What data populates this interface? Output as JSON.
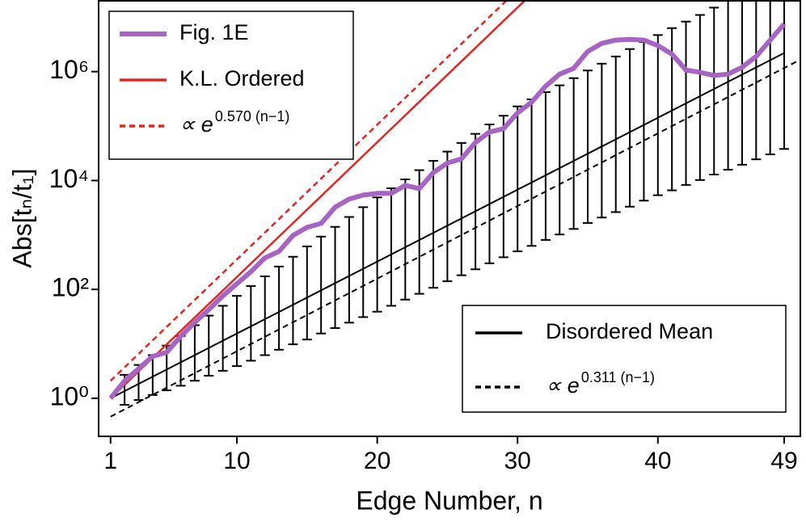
{
  "chart_data": {
    "type": "line",
    "xlabel": "Edge Number, n",
    "ylabel": "Abs[tₙ/t₁]",
    "log_y": true,
    "xlim": [
      0.15,
      50.15
    ],
    "xticks": [
      1,
      10,
      20,
      30,
      40,
      49
    ],
    "ylim": [
      0.2,
      20000000
    ],
    "yticks": [
      {
        "value": 1,
        "label": "10⁰"
      },
      {
        "value": 100,
        "label": "10²"
      },
      {
        "value": 10000,
        "label": "10⁴"
      },
      {
        "value": 1000000,
        "label": "10⁶"
      }
    ],
    "series": [
      {
        "name": "Fig. 1E",
        "color": "#a864c2",
        "width": 6,
        "dash": false,
        "legend": "upper left",
        "x": [
          1,
          2,
          3,
          4,
          5,
          6,
          7,
          8,
          9,
          10,
          11,
          12,
          13,
          14,
          15,
          16,
          17,
          18,
          19,
          20,
          21,
          22,
          23,
          24,
          25,
          26,
          27,
          28,
          29,
          30,
          31,
          32,
          33,
          34,
          35,
          36,
          37,
          38,
          39,
          40,
          41,
          42,
          43,
          44,
          45,
          46,
          47,
          48,
          49
        ],
        "values": [
          1,
          2.1,
          3.5,
          5.9,
          7,
          13.8,
          24.7,
          42.6,
          76,
          127,
          212,
          380,
          500,
          980,
          1380,
          1630,
          3240,
          4560,
          5400,
          5800,
          5800,
          8150,
          7100,
          14000,
          21000,
          25000,
          50000,
          78000,
          89000,
          175000,
          275000,
          540000,
          900000,
          1150000,
          2350000,
          3300000,
          3800000,
          3900000,
          3800000,
          3000000,
          2100000,
          1070000,
          970000,
          850000,
          900000,
          1200000,
          1900000,
          3800000,
          7500000
        ]
      },
      {
        "name": "K.L. Ordered",
        "color": "#e8231f",
        "width": 2.5,
        "dash": false,
        "legend": "upper left",
        "x": [
          1,
          49
        ],
        "values": [
          1,
          760000000000
        ]
      },
      {
        "name": "∝ e",
        "exponent": "0.570 (n−1)",
        "color": "#e8231f",
        "width": 2.5,
        "dash": true,
        "legend": "upper left",
        "x": [
          1,
          49
        ],
        "values": [
          2.1,
          1600000000000
        ]
      },
      {
        "name": "Disordered Mean",
        "color": "#000000",
        "width": 2,
        "dash": false,
        "legend": "lower right",
        "x": [
          1,
          49
        ],
        "values": [
          1,
          2200000
        ]
      },
      {
        "name": "∝ e",
        "exponent": "0.311 (n−1)",
        "color": "#000000",
        "width": 2,
        "dash": true,
        "legend": "lower right",
        "x": [
          1,
          50.15
        ],
        "values": [
          0.46,
          1660000
        ]
      }
    ],
    "error_bars": {
      "color": "#000000",
      "x": [
        2,
        3,
        4,
        5,
        6,
        7,
        8,
        9,
        10,
        11,
        12,
        13,
        14,
        15,
        16,
        17,
        18,
        19,
        20,
        21,
        22,
        23,
        24,
        25,
        26,
        27,
        28,
        29,
        30,
        31,
        32,
        33,
        34,
        35,
        36,
        37,
        38,
        39,
        40,
        41,
        42,
        43,
        44,
        45,
        46,
        47,
        48,
        49
      ],
      "low": [
        0.76,
        0.93,
        1.15,
        1.4,
        1.7,
        2.1,
        2.6,
        3.2,
        3.9,
        4.9,
        6.2,
        7.8,
        9.8,
        12,
        15.5,
        19.5,
        24.5,
        31,
        39,
        50,
        65,
        83,
        107,
        141,
        182,
        234,
        302,
        389,
        500,
        630,
        810,
        1020,
        1290,
        1660,
        2090,
        2630,
        3310,
        4270,
        5370,
        6600,
        8300,
        10200,
        12900,
        15800,
        19500,
        24500,
        30200,
        38000
      ],
      "high": [
        2.7,
        4.1,
        6.2,
        9.3,
        14,
        22,
        33,
        50,
        76,
        115,
        174,
        263,
        398,
        617,
        933,
        1410,
        2140,
        3240,
        4900,
        7200,
        10500,
        15500,
        23000,
        34000,
        49000,
        72000,
        107000,
        155000,
        230000,
        310000,
        420000,
        560000,
        760000,
        1050000,
        1400000,
        1900000,
        2600000,
        3500000,
        4700000,
        6300000,
        8300000,
        11000000,
        15000000,
        20000000,
        26000000,
        35000000,
        47000000,
        63000000
      ]
    }
  }
}
